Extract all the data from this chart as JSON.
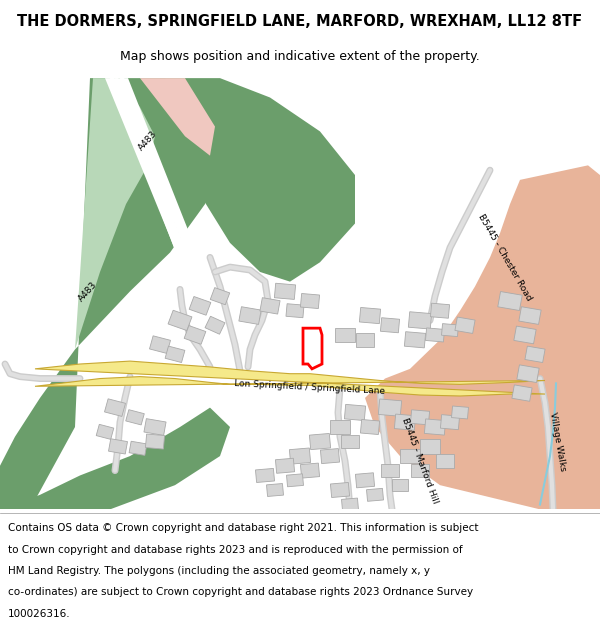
{
  "title_line1": "THE DORMERS, SPRINGFIELD LANE, MARFORD, WREXHAM, LL12 8TF",
  "title_line2": "Map shows position and indicative extent of the property.",
  "footer_lines": [
    "Contains OS data © Crown copyright and database right 2021. This information is subject",
    "to Crown copyright and database rights 2023 and is reproduced with the permission of",
    "HM Land Registry. The polygons (including the associated geometry, namely x, y",
    "co-ordinates) are subject to Crown copyright and database rights 2023 Ordnance Survey",
    "100026316."
  ],
  "bg_color": "#ffffff",
  "map_bg": "#f7f7f7",
  "green_dark": "#6b9e6b",
  "green_light": "#b8d8b8",
  "road_yellow_fill": "#f5e98a",
  "road_yellow_border": "#c8a832",
  "road_pink_fill": "#e8b49a",
  "road_gray_fill": "#d8d8d8",
  "road_gray_border": "#b8b8b8",
  "building_color": "#d4d4d4",
  "building_border": "#aaaaaa",
  "plot_color": "#ff0000",
  "title_fontsize": 10.5,
  "subtitle_fontsize": 9,
  "footer_fontsize": 7.5,
  "label_fontsize": 6.5
}
